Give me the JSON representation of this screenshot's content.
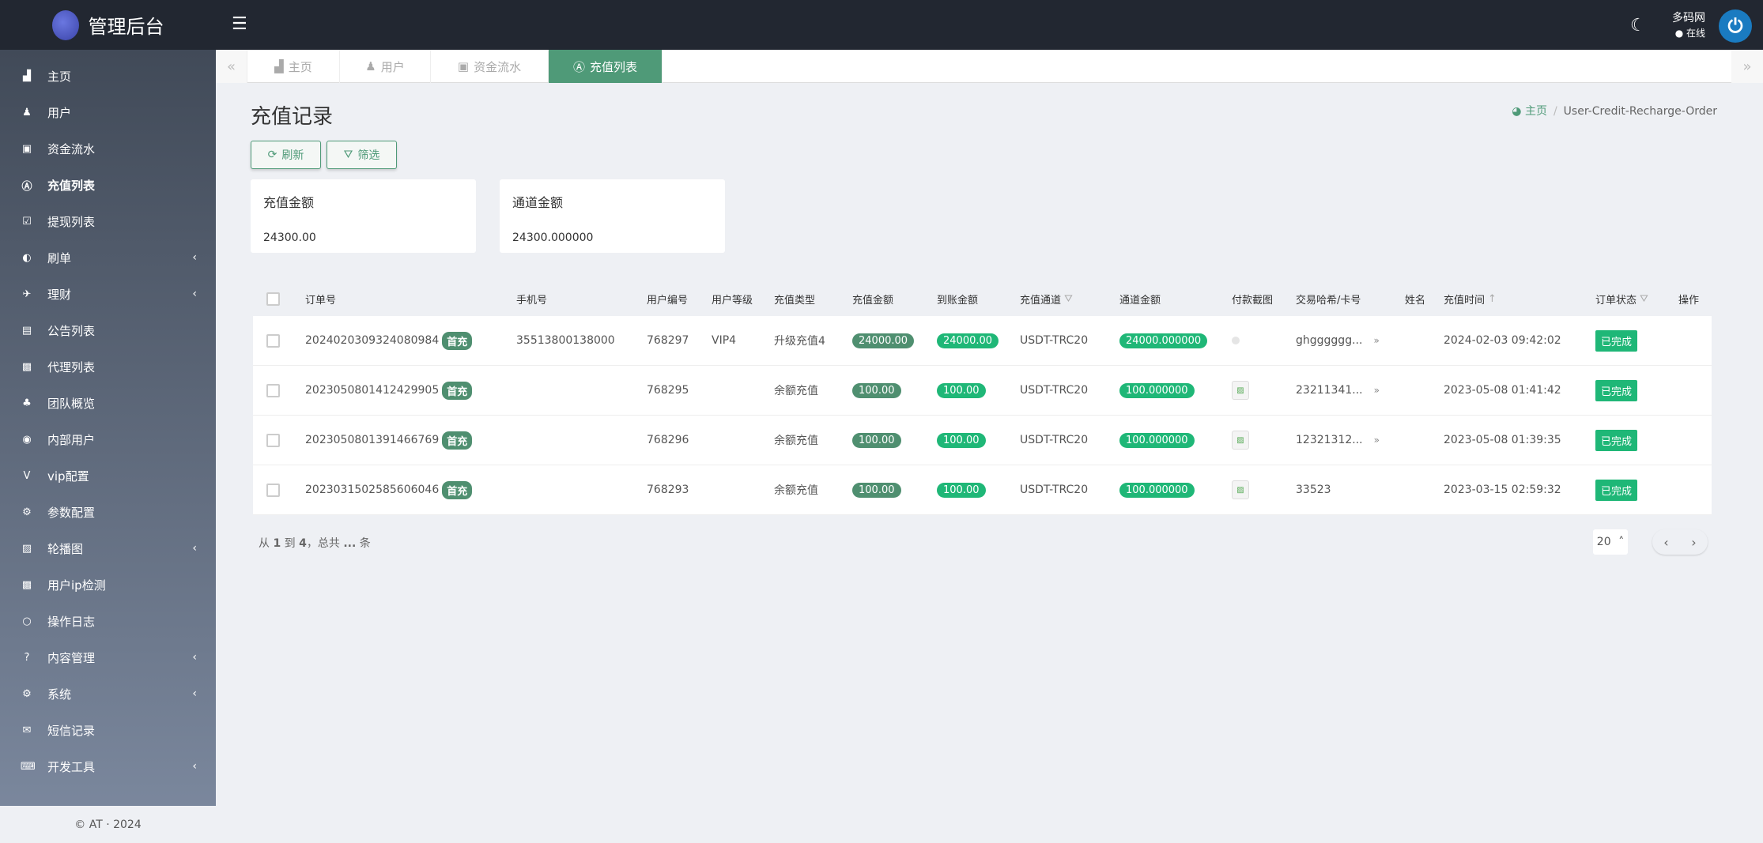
{
  "app": {
    "title": "管理后台",
    "user_name": "多码网",
    "user_status": "在线"
  },
  "sidebar": {
    "items": [
      {
        "label": "主页",
        "icon": "▟"
      },
      {
        "label": "用户",
        "icon": "♟"
      },
      {
        "label": "资金流水",
        "icon": "▣"
      },
      {
        "label": "充值列表",
        "icon": "Ⓐ",
        "active": true
      },
      {
        "label": "提现列表",
        "icon": "☑"
      },
      {
        "label": "刷单",
        "icon": "◐",
        "submenu": true
      },
      {
        "label": "理财",
        "icon": "✈",
        "submenu": true
      },
      {
        "label": "公告列表",
        "icon": "▤"
      },
      {
        "label": "代理列表",
        "icon": "▩"
      },
      {
        "label": "团队概览",
        "icon": "♣"
      },
      {
        "label": "内部用户",
        "icon": "◉"
      },
      {
        "label": "vip配置",
        "icon": "V"
      },
      {
        "label": "参数配置",
        "icon": "⚙"
      },
      {
        "label": "轮播图",
        "icon": "▨",
        "submenu": true
      },
      {
        "label": "用户ip检测",
        "icon": "▩"
      },
      {
        "label": "操作日志",
        "icon": "○"
      },
      {
        "label": "内容管理",
        "icon": "?",
        "submenu": true
      },
      {
        "label": "系统",
        "icon": "⚙",
        "submenu": true
      },
      {
        "label": "短信记录",
        "icon": "✉"
      },
      {
        "label": "开发工具",
        "icon": "⌨",
        "submenu": true
      }
    ],
    "footer": "© AT · 2024",
    "chevron": "‹"
  },
  "tabs": [
    {
      "label": "主页",
      "icon": "▟"
    },
    {
      "label": "用户",
      "icon": "♟"
    },
    {
      "label": "资金流水",
      "icon": "▣"
    },
    {
      "label": "充值列表",
      "icon": "Ⓐ",
      "active": true
    }
  ],
  "page": {
    "title": "充值记录",
    "breadcrumb_home": "主页",
    "breadcrumb_current": "User-Credit-Recharge-Order",
    "refresh_label": "刷新",
    "filter_label": "筛选"
  },
  "cards": [
    {
      "label": "充值金额",
      "value": "24300.00"
    },
    {
      "label": "通道金额",
      "value": "24300.000000"
    }
  ],
  "table": {
    "headers": [
      "订单号",
      "手机号",
      "用户编号",
      "用户等级",
      "充值类型",
      "充值金额",
      "到账金额",
      "充值通道",
      "通道金额",
      "付款截图",
      "交易哈希/卡号",
      "姓名",
      "充值时间",
      "订单状态",
      "操作"
    ],
    "rows": [
      {
        "order": "2024020309324080984",
        "tag": "首充",
        "phone": "35513800138000",
        "uid": "768297",
        "level": "VIP4",
        "type": "升级充值4",
        "amount": "24000.00",
        "received": "24000.00",
        "channel": "USDT-TRC20",
        "channel_amount": "24000.000000",
        "hash": "ghgggggg...",
        "time": "2024-02-03 09:42:02",
        "status": "已完成"
      },
      {
        "order": "2023050801412429905",
        "tag": "首充",
        "phone": "",
        "uid": "768295",
        "level": "",
        "type": "余额充值",
        "amount": "100.00",
        "received": "100.00",
        "channel": "USDT-TRC20",
        "channel_amount": "100.000000",
        "hash": "23211341...",
        "time": "2023-05-08 01:41:42",
        "status": "已完成"
      },
      {
        "order": "2023050801391466769",
        "tag": "首充",
        "phone": "",
        "uid": "768296",
        "level": "",
        "type": "余额充值",
        "amount": "100.00",
        "received": "100.00",
        "channel": "USDT-TRC20",
        "channel_amount": "100.000000",
        "hash": "12321312...",
        "time": "2023-05-08 01:39:35",
        "status": "已完成"
      },
      {
        "order": "2023031502585606046",
        "tag": "首充",
        "phone": "",
        "uid": "768293",
        "level": "",
        "type": "余额充值",
        "amount": "100.00",
        "received": "100.00",
        "channel": "USDT-TRC20",
        "channel_amount": "100.000000",
        "hash": "33523",
        "time": "2023-03-15 02:59:32",
        "status": "已完成"
      }
    ]
  },
  "pagination": {
    "info_from": "从",
    "from": "1",
    "info_to": "到",
    "to": "4",
    "info_total": "，总共",
    "total": "...",
    "info_unit": "条",
    "page_size": "20"
  },
  "colors": {
    "accent": "#4f9a78",
    "success": "#1fb777",
    "topbar": "#222731"
  }
}
